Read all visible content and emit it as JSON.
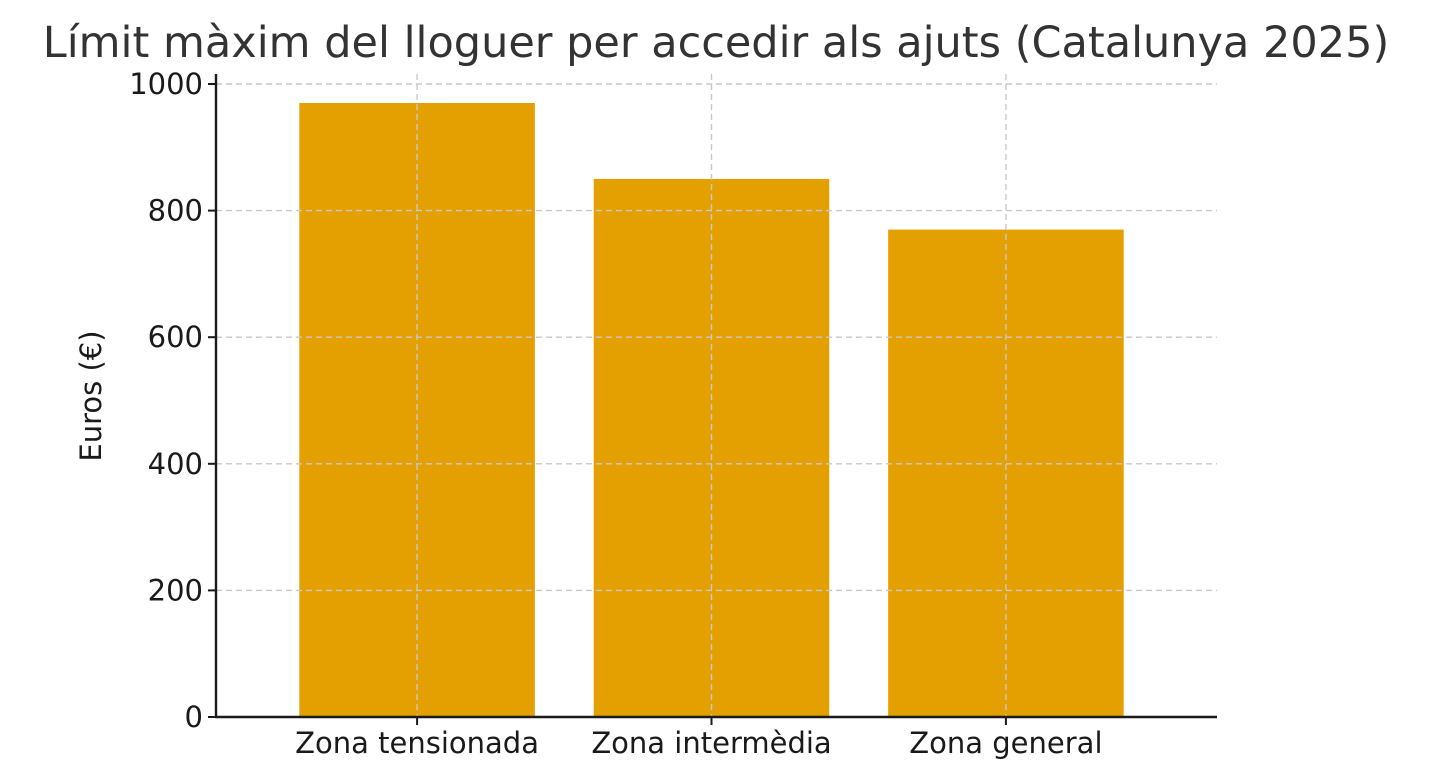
{
  "chart_data": {
    "type": "bar",
    "title": "Límit màxim del lloguer per accedir als ajuts (Catalunya 2025)",
    "xlabel": "",
    "ylabel": "Euros (€)",
    "categories": [
      "Zona tensionada",
      "Zona intermèdia",
      "Zona general"
    ],
    "values": [
      970,
      850,
      770
    ],
    "ylim": [
      0,
      1000
    ],
    "yticks": [
      0,
      200,
      400,
      600,
      800,
      1000
    ],
    "grid": true,
    "bar_color": "#E3A000"
  }
}
